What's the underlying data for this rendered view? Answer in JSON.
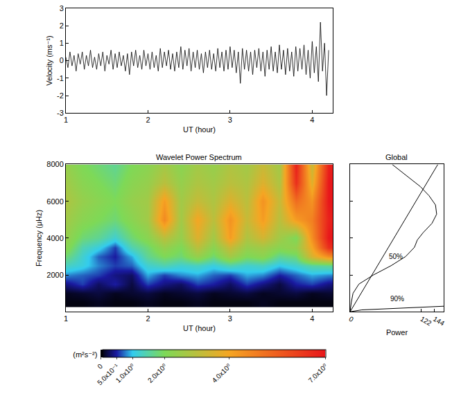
{
  "chart_data": [
    {
      "type": "line",
      "xlabel": "UT (hour)",
      "ylabel": "Velocity (ms⁻¹)",
      "xlim": [
        1,
        4.25
      ],
      "xticks": [
        1,
        2,
        3,
        4
      ],
      "ylim": [
        -3,
        3
      ],
      "yticks": [
        -3,
        -2,
        -1,
        0,
        1,
        2,
        3
      ],
      "grid": false,
      "series": [
        {
          "color": "#000000",
          "line_style": "solid",
          "x": [
            1.0,
            1.025,
            1.05,
            1.075,
            1.1,
            1.125,
            1.15,
            1.175,
            1.2,
            1.225,
            1.25,
            1.275,
            1.3,
            1.325,
            1.35,
            1.375,
            1.4,
            1.425,
            1.45,
            1.475,
            1.5,
            1.525,
            1.55,
            1.575,
            1.6,
            1.625,
            1.65,
            1.675,
            1.7,
            1.725,
            1.75,
            1.775,
            1.8,
            1.825,
            1.85,
            1.875,
            1.9,
            1.925,
            1.95,
            1.975,
            2.0,
            2.025,
            2.05,
            2.075,
            2.1,
            2.125,
            2.15,
            2.175,
            2.2,
            2.225,
            2.25,
            2.275,
            2.3,
            2.325,
            2.35,
            2.375,
            2.4,
            2.425,
            2.45,
            2.475,
            2.5,
            2.525,
            2.55,
            2.575,
            2.6,
            2.625,
            2.65,
            2.675,
            2.7,
            2.725,
            2.75,
            2.775,
            2.8,
            2.825,
            2.85,
            2.875,
            2.9,
            2.925,
            2.95,
            2.975,
            3.0,
            3.025,
            3.05,
            3.075,
            3.1,
            3.125,
            3.15,
            3.175,
            3.2,
            3.225,
            3.25,
            3.275,
            3.3,
            3.325,
            3.35,
            3.375,
            3.4,
            3.425,
            3.45,
            3.475,
            3.5,
            3.525,
            3.55,
            3.575,
            3.6,
            3.625,
            3.65,
            3.675,
            3.7,
            3.725,
            3.75,
            3.775,
            3.8,
            3.825,
            3.85,
            3.875,
            3.9,
            3.925,
            3.95,
            3.975,
            4.0,
            4.025,
            4.05,
            4.075,
            4.1,
            4.125,
            4.15,
            4.175,
            4.2
          ],
          "values": [
            0.2,
            -0.4,
            0.5,
            -0.3,
            0.3,
            -0.6,
            0.4,
            -0.2,
            0.5,
            -0.5,
            0.3,
            -0.3,
            0.6,
            -0.4,
            0.2,
            -0.5,
            0.4,
            -0.3,
            0.5,
            -0.6,
            0.3,
            -0.2,
            0.6,
            -0.5,
            0.4,
            -0.4,
            0.5,
            -0.3,
            0.3,
            -0.6,
            0.4,
            -0.8,
            0.5,
            -0.3,
            0.6,
            -0.4,
            0.3,
            -0.5,
            0.6,
            -0.3,
            0.4,
            -0.5,
            0.5,
            -0.4,
            0.3,
            -0.6,
            0.7,
            -0.4,
            0.5,
            -0.3,
            0.6,
            -0.5,
            0.4,
            -0.6,
            0.5,
            -0.4,
            0.8,
            -0.5,
            0.6,
            -0.3,
            0.7,
            -0.6,
            0.5,
            -0.4,
            0.6,
            -0.5,
            0.4,
            -0.7,
            0.5,
            -0.4,
            0.6,
            -0.5,
            0.4,
            -0.6,
            0.7,
            -0.4,
            0.5,
            -0.6,
            0.6,
            -0.5,
            0.8,
            -0.4,
            0.6,
            -0.7,
            0.5,
            -1.3,
            0.7,
            -0.5,
            0.6,
            -0.6,
            0.5,
            -0.8,
            0.6,
            -0.4,
            0.7,
            -0.6,
            0.5,
            -0.9,
            0.6,
            -0.5,
            0.8,
            -0.6,
            0.5,
            -0.7,
            0.9,
            -0.5,
            0.6,
            -0.8,
            0.7,
            -0.6,
            0.5,
            -0.9,
            0.8,
            -0.6,
            0.7,
            -0.5,
            0.9,
            -0.8,
            0.6,
            -1.0,
            1.1,
            -0.7,
            0.8,
            -1.2,
            2.2,
            -0.6,
            1.0,
            -2.0,
            0.6
          ]
        }
      ]
    },
    {
      "type": "heatmap",
      "title": "Wavelet Power Spectrum",
      "xlabel": "UT (hour)",
      "ylabel": "Frequency (μHz)",
      "xlim": [
        1,
        4.25
      ],
      "xticks": [
        1,
        2,
        3,
        4
      ],
      "ylim": [
        0,
        8000
      ],
      "yticks": [
        2000,
        4000,
        6000,
        8000
      ],
      "x": [
        1.0,
        1.2,
        1.4,
        1.6,
        1.8,
        2.0,
        2.2,
        2.4,
        2.6,
        2.8,
        3.0,
        3.2,
        3.4,
        3.6,
        3.8,
        4.0,
        4.2
      ],
      "y": [
        500,
        1000,
        1500,
        2000,
        2500,
        3000,
        3500,
        4000,
        5000,
        6000,
        7000,
        8000
      ],
      "z": [
        [
          0.05,
          0.05,
          0.1,
          0.05,
          0.05,
          0.1,
          0.05,
          0.05,
          0.1,
          0.05,
          0.05,
          0.05,
          0.1,
          0.05,
          0.05,
          0.05,
          0.05
        ],
        [
          0.1,
          0.15,
          0.2,
          0.1,
          0.15,
          0.2,
          0.1,
          0.15,
          0.2,
          0.1,
          0.15,
          0.2,
          0.1,
          0.15,
          0.2,
          0.1,
          0.15
        ],
        [
          0.4,
          0.6,
          0.3,
          0.5,
          0.2,
          0.6,
          0.4,
          0.3,
          0.6,
          0.5,
          0.3,
          0.6,
          0.4,
          0.2,
          0.5,
          0.6,
          0.4
        ],
        [
          0.8,
          0.7,
          0.6,
          0.4,
          0.3,
          0.9,
          0.6,
          0.8,
          0.9,
          0.7,
          0.6,
          0.9,
          0.8,
          0.5,
          0.7,
          0.9,
          0.8
        ],
        [
          1.3,
          1.1,
          0.8,
          0.6,
          0.7,
          1.2,
          1.4,
          1.2,
          1.3,
          1.1,
          1.4,
          1.2,
          1.3,
          1.0,
          1.2,
          1.5,
          1.6
        ],
        [
          1.8,
          1.2,
          0.7,
          0.5,
          0.9,
          1.6,
          2.0,
          1.8,
          2.4,
          1.8,
          2.6,
          2.0,
          2.2,
          1.6,
          1.8,
          3.5,
          4.5
        ],
        [
          2.2,
          1.4,
          1.1,
          0.6,
          1.4,
          1.8,
          2.4,
          2.0,
          3.0,
          2.2,
          3.2,
          2.4,
          2.6,
          2.2,
          2.4,
          4.0,
          6.5
        ],
        [
          2.4,
          1.8,
          1.6,
          1.2,
          1.8,
          2.2,
          3.0,
          2.4,
          3.6,
          2.6,
          4.2,
          2.8,
          3.4,
          2.6,
          2.0,
          4.5,
          7.0
        ],
        [
          2.6,
          2.2,
          2.0,
          1.8,
          2.2,
          2.6,
          4.6,
          2.6,
          4.0,
          3.0,
          4.4,
          3.2,
          4.2,
          3.0,
          4.2,
          4.8,
          6.8
        ],
        [
          2.8,
          2.4,
          2.2,
          2.0,
          2.4,
          2.6,
          4.2,
          2.6,
          3.2,
          2.8,
          3.6,
          3.0,
          4.4,
          3.2,
          5.2,
          4.4,
          7.0
        ],
        [
          2.6,
          2.2,
          2.0,
          1.8,
          2.2,
          2.4,
          3.0,
          2.4,
          2.8,
          2.6,
          3.0,
          2.8,
          3.6,
          2.8,
          6.5,
          3.6,
          7.0
        ],
        [
          2.4,
          2.0,
          1.8,
          1.6,
          2.0,
          2.2,
          2.6,
          2.2,
          2.6,
          2.4,
          2.8,
          2.6,
          3.2,
          2.6,
          6.8,
          3.2,
          6.8
        ]
      ],
      "colorbar": {
        "title": "(m²s⁻²)",
        "range": [
          0,
          7
        ],
        "ticks": [
          0,
          {
            "value": 0.5,
            "label": "5.0x10⁻¹"
          },
          {
            "value": 1,
            "label": "1.0x10⁰"
          },
          {
            "value": 2,
            "label": "2.0x10⁰"
          },
          {
            "value": 4,
            "label": "4.0x10⁰"
          },
          {
            "value": 7,
            "label": "7.0x10⁰"
          }
        ],
        "colors": [
          "#000000",
          "#1a1aa0",
          "#33ccee",
          "#7ed957",
          "#f5a623",
          "#e8171b"
        ]
      }
    },
    {
      "type": "line",
      "title": "Global",
      "orientation": "horizontal",
      "xlabel": "Power",
      "xlim": [
        0,
        160
      ],
      "xticks": [
        0,
        122,
        144
      ],
      "ylim": [
        0,
        8000
      ],
      "yticks": [
        2000,
        4000,
        6000,
        8000
      ],
      "tick_labels": "x",
      "grid": false,
      "series": [
        {
          "color": "#000000",
          "line_style": "solid",
          "values": [
            0,
            2,
            5,
            15,
            40,
            70,
            95,
            110,
            115,
            125,
            140,
            148,
            146,
            135,
            120,
            100,
            80,
            72
          ],
          "y": [
            0,
            500,
            1000,
            1500,
            2000,
            2500,
            3000,
            3500,
            3900,
            4300,
            4800,
            5300,
            5800,
            6300,
            6800,
            7300,
            7800,
            8000
          ]
        },
        {
          "color": "#000000",
          "line_style": "solid",
          "values": [
            0,
            150
          ],
          "y": [
            0,
            8000
          ]
        },
        {
          "color": "#000000",
          "line_style": "solid",
          "values": [
            0,
            20,
            160
          ],
          "y": [
            0,
            100,
            300
          ]
        }
      ],
      "annotations": [
        {
          "text": "50%",
          "x": 78,
          "y": 3000
        },
        {
          "text": "90%",
          "x": 80,
          "y": 700
        }
      ]
    }
  ]
}
